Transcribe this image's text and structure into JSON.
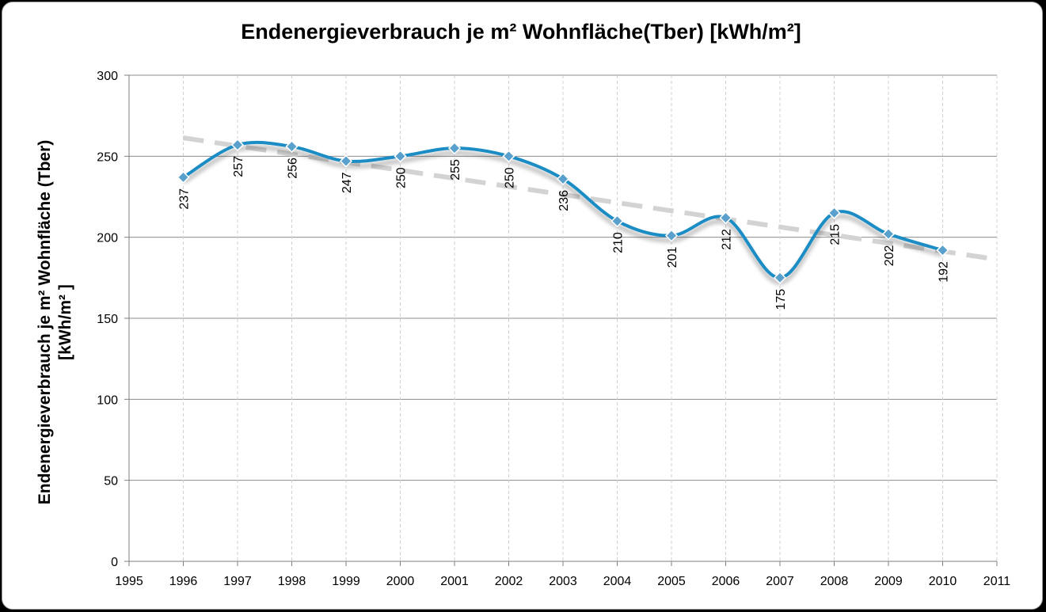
{
  "chart_data": {
    "type": "line",
    "title": "Endenergieverbrauch  je m² Wohnfläche(Tber)  [kWh/m²]",
    "ylabel_line1": "Endenergieverbrauch  je m² Wohnfläche (Tber)",
    "ylabel_line2": "[kWh/m² ]",
    "xlabel": "",
    "xlim": [
      1995,
      2011
    ],
    "ylim": [
      0,
      300
    ],
    "x_ticks": [
      "1995",
      "1996",
      "1997",
      "1998",
      "1999",
      "2000",
      "2001",
      "2002",
      "2003",
      "2004",
      "2005",
      "2006",
      "2007",
      "2008",
      "2009",
      "2010",
      "2011"
    ],
    "y_ticks": [
      "0",
      "50",
      "100",
      "150",
      "200",
      "250",
      "300"
    ],
    "grid": true,
    "series": [
      {
        "x": [
          1996,
          1997,
          1998,
          1999,
          2000,
          2001,
          2002,
          2003,
          2004,
          2005,
          2006,
          2007,
          2008,
          2009,
          2010
        ],
        "values": [
          237,
          257,
          256,
          247,
          250,
          255,
          250,
          236,
          210,
          201,
          212,
          175,
          215,
          202,
          192
        ],
        "labels": [
          "237",
          "257",
          "256",
          "247",
          "250",
          "255",
          "250",
          "236",
          "210",
          "201",
          "212",
          "175",
          "215",
          "202",
          "192"
        ],
        "color": "#1a8dc4",
        "marker": "diamond",
        "smooth": true
      }
    ],
    "trendline": {
      "type": "linear",
      "color": "#d3d3d3",
      "style": "dashed",
      "x_range": [
        1996,
        2011
      ]
    }
  }
}
